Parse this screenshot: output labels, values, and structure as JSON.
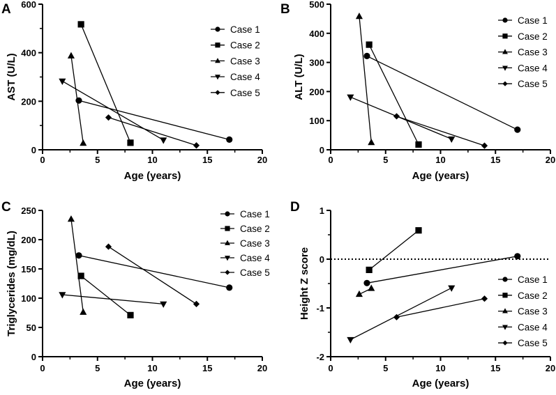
{
  "chart_data": [
    {
      "panel": "A",
      "type": "line",
      "xlabel": "Age (years)",
      "ylabel": "AST (U/L)",
      "xlim": [
        0,
        20
      ],
      "ylim": [
        0,
        600
      ],
      "xticks": [
        0,
        5,
        10,
        15,
        20
      ],
      "yticks": [
        0,
        200,
        400,
        600
      ],
      "yminor": 100,
      "legend": "top-right",
      "series": [
        {
          "name": "Case 1",
          "marker": "circle",
          "x": [
            3.3,
            17
          ],
          "y": [
            203,
            42
          ]
        },
        {
          "name": "Case 2",
          "marker": "square",
          "x": [
            3.5,
            8
          ],
          "y": [
            517,
            29
          ]
        },
        {
          "name": "Case 3",
          "marker": "triangle-up",
          "x": [
            2.6,
            3.7
          ],
          "y": [
            387,
            27
          ]
        },
        {
          "name": "Case 4",
          "marker": "triangle-down",
          "x": [
            1.8,
            11
          ],
          "y": [
            283,
            40
          ]
        },
        {
          "name": "Case 5",
          "marker": "diamond",
          "x": [
            6,
            14
          ],
          "y": [
            133,
            18
          ]
        }
      ]
    },
    {
      "panel": "B",
      "type": "line",
      "xlabel": "Age (years)",
      "ylabel": "ALT (U/L)",
      "xlim": [
        0,
        20
      ],
      "ylim": [
        0,
        500
      ],
      "xticks": [
        0,
        5,
        10,
        15,
        20
      ],
      "yticks": [
        0,
        100,
        200,
        300,
        400,
        500
      ],
      "yminor": null,
      "legend": "top-right",
      "series": [
        {
          "name": "Case 1",
          "marker": "circle",
          "x": [
            3.3,
            17
          ],
          "y": [
            322,
            69
          ]
        },
        {
          "name": "Case 2",
          "marker": "square",
          "x": [
            3.5,
            8
          ],
          "y": [
            361,
            18
          ]
        },
        {
          "name": "Case 3",
          "marker": "triangle-up",
          "x": [
            2.6,
            3.7
          ],
          "y": [
            458,
            25
          ]
        },
        {
          "name": "Case 4",
          "marker": "triangle-down",
          "x": [
            1.8,
            11
          ],
          "y": [
            181,
            37
          ]
        },
        {
          "name": "Case 5",
          "marker": "diamond",
          "x": [
            6,
            14
          ],
          "y": [
            115,
            14
          ]
        }
      ]
    },
    {
      "panel": "C",
      "type": "line",
      "xlabel": "Age (years)",
      "ylabel": "Triglycerides (mg/dL)",
      "xlim": [
        0,
        20
      ],
      "ylim": [
        0,
        250
      ],
      "xticks": [
        0,
        5,
        10,
        15,
        20
      ],
      "yticks": [
        0,
        50,
        100,
        150,
        200,
        250
      ],
      "yminor": null,
      "legend": "top-right",
      "series": [
        {
          "name": "Case 1",
          "marker": "circle",
          "x": [
            3.3,
            17
          ],
          "y": [
            173,
            118
          ]
        },
        {
          "name": "Case 2",
          "marker": "square",
          "x": [
            3.5,
            8
          ],
          "y": [
            138,
            71
          ]
        },
        {
          "name": "Case 3",
          "marker": "triangle-up",
          "x": [
            2.6,
            3.7
          ],
          "y": [
            235,
            76
          ]
        },
        {
          "name": "Case 4",
          "marker": "triangle-down",
          "x": [
            1.8,
            11
          ],
          "y": [
            106,
            90
          ]
        },
        {
          "name": "Case 5",
          "marker": "diamond",
          "x": [
            6,
            14
          ],
          "y": [
            188,
            90
          ]
        }
      ]
    },
    {
      "panel": "D",
      "type": "line",
      "xlabel": "Age (years)",
      "ylabel": "Height Z score",
      "xlim": [
        0,
        20
      ],
      "ylim": [
        -2,
        1
      ],
      "xticks": [
        0,
        5,
        10,
        15,
        20
      ],
      "yticks": [
        -2,
        -1,
        0,
        1
      ],
      "yminor": 0.5,
      "reference_line": {
        "y": 0,
        "style": "dotted"
      },
      "legend": "bottom-right",
      "series": [
        {
          "name": "Case 1",
          "marker": "circle",
          "x": [
            3.3,
            17
          ],
          "y": [
            -0.49,
            0.06
          ]
        },
        {
          "name": "Case 2",
          "marker": "square",
          "x": [
            3.5,
            8
          ],
          "y": [
            -0.22,
            0.59
          ]
        },
        {
          "name": "Case 3",
          "marker": "triangle-up",
          "x": [
            2.6,
            3.7
          ],
          "y": [
            -0.72,
            -0.6
          ]
        },
        {
          "name": "Case 4",
          "marker": "triangle-down",
          "x": [
            1.8,
            11
          ],
          "y": [
            -1.65,
            -0.59
          ]
        },
        {
          "name": "Case 5",
          "marker": "diamond",
          "x": [
            6,
            14
          ],
          "y": [
            -1.19,
            -0.81
          ]
        }
      ]
    }
  ]
}
